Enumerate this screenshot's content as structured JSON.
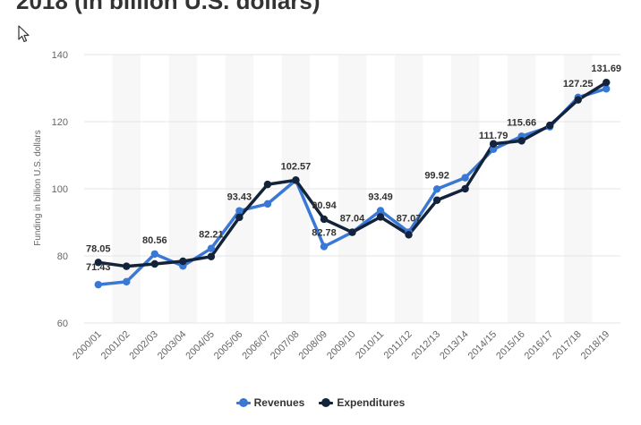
{
  "title": "2018 (in billion U.S. dollars)",
  "colors": {
    "revenues": "#3a78d6",
    "expenditures": "#13233b",
    "grid": "#e6e6e6",
    "band": "#f7f7f7"
  },
  "chart_data": {
    "type": "line",
    "title": "2018 (in billion U.S. dollars)",
    "xlabel": "",
    "ylabel": "Funding in billion U.S. dollars",
    "ylim": [
      60,
      140
    ],
    "yticks": [
      60,
      80,
      100,
      120,
      140
    ],
    "grid": true,
    "legend": "bottom-center",
    "categories": [
      "2000/01",
      "2001/02",
      "2002/03",
      "2003/04",
      "2004/05",
      "2005/06",
      "2006/07",
      "2007/08",
      "2008/09",
      "2009/10",
      "2010/11",
      "2011/12",
      "2012/13",
      "2013/14",
      "2014/15",
      "2015/16",
      "2016/17",
      "2017/18",
      "2018/19"
    ],
    "series": [
      {
        "name": "Revenues",
        "values": [
          71.43,
          72.3,
          80.56,
          77.0,
          82.21,
          93.43,
          95.5,
          102.57,
          82.78,
          87.04,
          93.49,
          87.07,
          99.92,
          103.3,
          111.79,
          115.66,
          118.5,
          127.25,
          129.8
        ]
      },
      {
        "name": "Expenditures",
        "values": [
          78.05,
          76.9,
          77.6,
          78.4,
          79.8,
          91.5,
          101.3,
          102.57,
          90.94,
          87.04,
          91.6,
          86.3,
          96.6,
          100.0,
          113.4,
          114.3,
          118.9,
          126.5,
          131.69
        ]
      }
    ],
    "annotations": [
      {
        "text": "78.05",
        "cat": 0,
        "value": 78.05
      },
      {
        "text": "71.43",
        "cat": 0,
        "value": 71.43
      },
      {
        "text": "80.56",
        "cat": 2,
        "value": 80.56
      },
      {
        "text": "82.21",
        "cat": 4,
        "value": 82.21
      },
      {
        "text": "93.43",
        "cat": 5,
        "value": 93.43
      },
      {
        "text": "102.57",
        "cat": 7,
        "value": 102.57
      },
      {
        "text": "90.94",
        "cat": 8,
        "value": 90.94
      },
      {
        "text": "82.78",
        "cat": 8,
        "value": 82.78
      },
      {
        "text": "87.04",
        "cat": 9,
        "value": 87.04
      },
      {
        "text": "93.49",
        "cat": 10,
        "value": 93.49
      },
      {
        "text": "87.07",
        "cat": 11,
        "value": 87.07
      },
      {
        "text": "99.92",
        "cat": 12,
        "value": 99.92
      },
      {
        "text": "111.79",
        "cat": 14,
        "value": 111.79
      },
      {
        "text": "115.66",
        "cat": 15,
        "value": 115.66
      },
      {
        "text": "127.25",
        "cat": 17,
        "value": 127.25
      },
      {
        "text": "131.69",
        "cat": 18,
        "value": 131.69
      }
    ]
  }
}
